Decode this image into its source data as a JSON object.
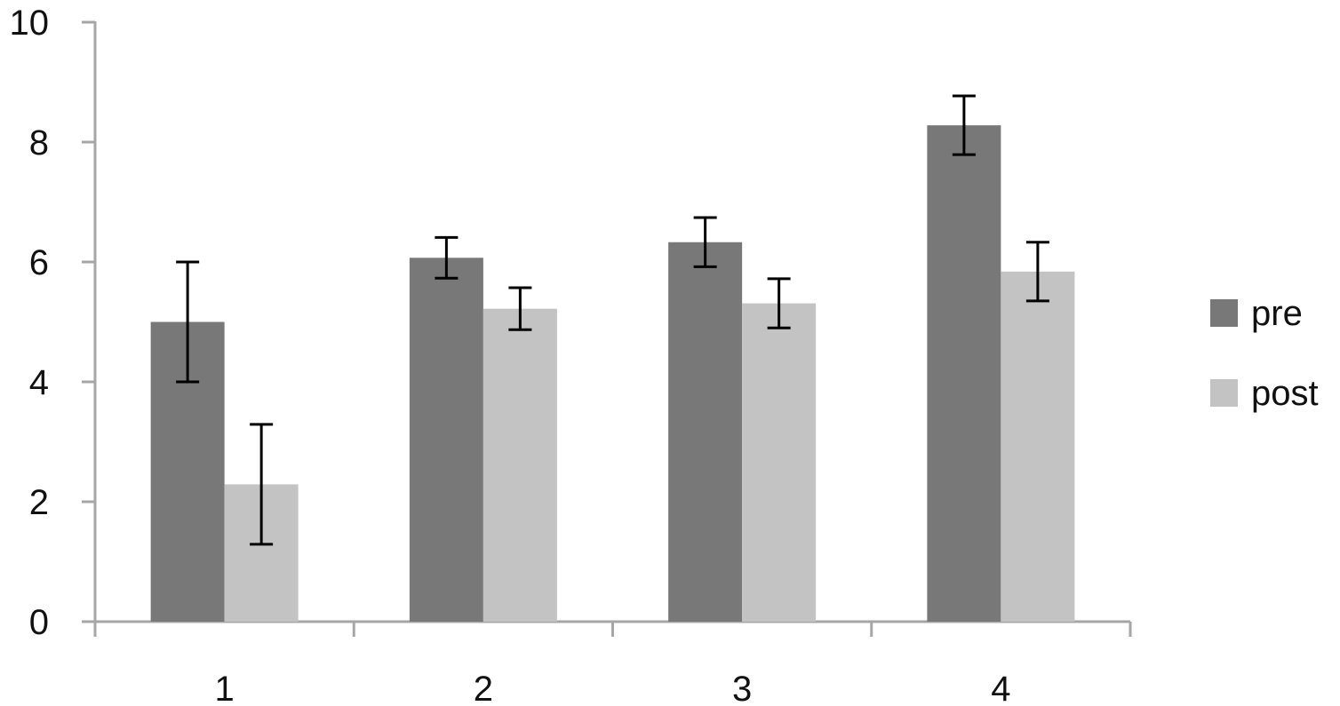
{
  "chart_data": {
    "type": "bar",
    "title": "",
    "xlabel": "",
    "ylabel": "",
    "categories": [
      "1",
      "2",
      "3",
      "4"
    ],
    "ylim": [
      0,
      10
    ],
    "y_ticks": [
      0,
      2,
      4,
      6,
      8,
      10
    ],
    "y_tick_labels": [
      "0",
      "2",
      "4",
      "6",
      "8",
      "10"
    ],
    "grid": false,
    "legend_position": "right",
    "error_bars": true,
    "series": [
      {
        "name": "pre",
        "color": "#787878",
        "values": [
          5.0,
          6.07,
          6.33,
          8.28
        ],
        "error": [
          1.0,
          0.34,
          0.41,
          0.49
        ]
      },
      {
        "name": "post",
        "color": "#c3c3c3",
        "values": [
          2.29,
          5.22,
          5.31,
          5.84
        ],
        "error": [
          1.0,
          0.35,
          0.41,
          0.49
        ]
      }
    ],
    "axis_color": "#a6a6a6",
    "error_bar_color": "#000000"
  }
}
